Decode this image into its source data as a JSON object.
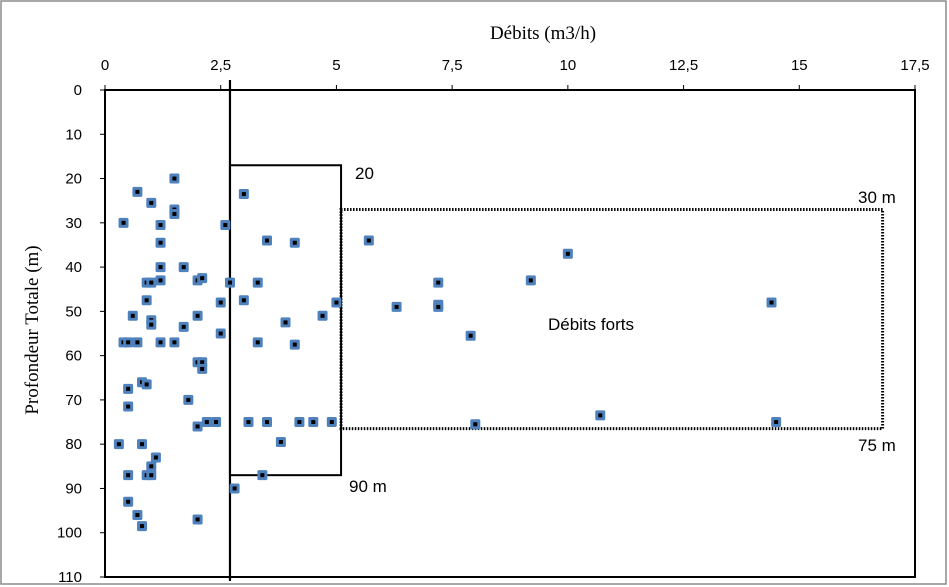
{
  "chart_data": {
    "type": "scatter",
    "xlabel": "Débits (m3/h)",
    "ylabel": "Profondeur Totale (m)",
    "xlim": [
      0,
      17.5
    ],
    "ylim": [
      0,
      110
    ],
    "y_inverted": true,
    "x_axis_position": "top",
    "x_ticks": [
      "0",
      "2,5",
      "5",
      "7,5",
      "10",
      "12,5",
      "15",
      "17,5"
    ],
    "y_ticks": [
      "0",
      "10",
      "20",
      "30",
      "40",
      "50",
      "60",
      "70",
      "80",
      "90",
      "100",
      "110"
    ],
    "grid": false,
    "marker_color": "#4f81bd",
    "series": [
      {
        "points": [
          [
            0.4,
            30
          ],
          [
            0.7,
            23
          ],
          [
            1.0,
            25.5
          ],
          [
            1.5,
            20
          ],
          [
            1.5,
            27
          ],
          [
            1.5,
            28
          ],
          [
            1.2,
            30.5
          ],
          [
            1.2,
            34.5
          ],
          [
            1.2,
            40
          ],
          [
            1.2,
            43
          ],
          [
            0.9,
            43.5
          ],
          [
            1.0,
            43.5
          ],
          [
            0.9,
            47.5
          ],
          [
            1.0,
            52
          ],
          [
            1.0,
            53
          ],
          [
            0.6,
            51
          ],
          [
            0.4,
            57
          ],
          [
            0.5,
            57
          ],
          [
            0.7,
            57
          ],
          [
            1.2,
            57
          ],
          [
            1.5,
            57
          ],
          [
            1.7,
            53.5
          ],
          [
            1.7,
            40
          ],
          [
            2.0,
            43
          ],
          [
            2.1,
            42.5
          ],
          [
            2.0,
            51
          ],
          [
            2.0,
            61.5
          ],
          [
            2.1,
            61.5
          ],
          [
            2.1,
            63
          ],
          [
            0.5,
            67.5
          ],
          [
            0.8,
            66
          ],
          [
            0.9,
            66.5
          ],
          [
            0.5,
            71.5
          ],
          [
            1.8,
            70
          ],
          [
            2.0,
            76
          ],
          [
            2.2,
            75
          ],
          [
            2.4,
            75
          ],
          [
            0.3,
            80
          ],
          [
            0.8,
            80
          ],
          [
            1.1,
            83
          ],
          [
            1.0,
            85
          ],
          [
            0.9,
            87
          ],
          [
            1.0,
            87
          ],
          [
            0.5,
            87
          ],
          [
            0.5,
            93
          ],
          [
            0.7,
            96
          ],
          [
            0.8,
            98.5
          ],
          [
            2.0,
            97
          ],
          [
            2.6,
            30.5
          ],
          [
            3.0,
            23.5
          ],
          [
            2.7,
            43.5
          ],
          [
            2.5,
            48
          ],
          [
            3.0,
            47.5
          ],
          [
            3.3,
            43.5
          ],
          [
            3.5,
            34
          ],
          [
            4.1,
            34.5
          ],
          [
            2.5,
            55
          ],
          [
            3.3,
            57
          ],
          [
            3.9,
            52.5
          ],
          [
            4.1,
            57.5
          ],
          [
            4.7,
            51
          ],
          [
            5.0,
            48
          ],
          [
            3.1,
            75
          ],
          [
            3.5,
            75
          ],
          [
            4.2,
            75
          ],
          [
            4.5,
            75
          ],
          [
            4.9,
            75
          ],
          [
            3.8,
            79.5
          ],
          [
            3.4,
            87
          ],
          [
            2.8,
            90
          ],
          [
            5.7,
            34
          ],
          [
            6.3,
            49
          ],
          [
            7.2,
            43.5
          ],
          [
            7.2,
            48.5
          ],
          [
            7.2,
            49
          ],
          [
            7.9,
            55.5
          ],
          [
            8.0,
            75.5
          ],
          [
            9.2,
            43
          ],
          [
            10.0,
            37
          ],
          [
            10.7,
            73.5
          ],
          [
            14.4,
            48
          ],
          [
            14.5,
            75
          ]
        ]
      }
    ],
    "reference_lines": [
      {
        "type": "vertical",
        "x": 2.7,
        "style": "solid"
      }
    ],
    "regions": [
      {
        "x": [
          2.7,
          5.1
        ],
        "y": [
          17,
          87
        ],
        "style": "solid"
      },
      {
        "x": [
          5.1,
          16.8
        ],
        "y": [
          27,
          76.5
        ],
        "style": "dotted"
      }
    ],
    "annotations": {
      "box_top": "20",
      "box_bottom": "90 m",
      "region_top": "30 m",
      "region_bottom": "75 m",
      "region_label": "Débits forts"
    }
  }
}
